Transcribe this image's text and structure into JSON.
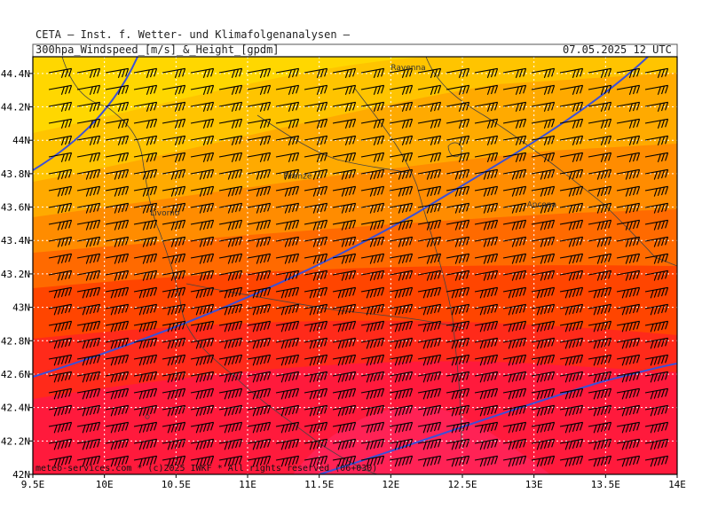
{
  "header": {
    "institution": "CETA – Inst. f. Wetter- und Klimafolgenanalysen –",
    "product": "300hpa_Windspeed_[m/s]_&_Height_[gpdm]",
    "valid_time": "07.05.2025 12 UTC"
  },
  "map": {
    "lon_ticks": [
      "9.5E",
      "10E",
      "10.5E",
      "11E",
      "11.5E",
      "12E",
      "12.5E",
      "13E",
      "13.5E",
      "14E"
    ],
    "lat_ticks": [
      "42N",
      "42.2N",
      "42.4N",
      "42.6N",
      "42.8N",
      "43N",
      "43.2N",
      "43.4N",
      "43.6N",
      "43.8N",
      "44N",
      "44.2N",
      "44.4N"
    ],
    "lon_range": [
      9.5,
      14.0
    ],
    "lat_range": [
      42.0,
      44.5
    ],
    "places": [
      {
        "name": "Ravenna",
        "lon": 12.0,
        "lat": 44.42
      },
      {
        "name": "Firenze",
        "lon": 11.25,
        "lat": 43.77
      },
      {
        "name": "Livorno",
        "lon": 10.32,
        "lat": 43.55
      },
      {
        "name": "Ancona",
        "lon": 12.95,
        "lat": 43.6
      }
    ],
    "footer": "meteo-services.com * (c)2025 IWKF * All rights reserved (06+030)",
    "colors": {
      "band_1": "#ffd700",
      "band_2": "#ffc400",
      "band_3": "#ffaa00",
      "band_4": "#ff8c00",
      "band_5": "#ff6a00",
      "band_6": "#ff4500",
      "band_7": "#ff2a1a",
      "band_8": "#ff1a3c",
      "band_9": "#ff2255",
      "contour": "#3b50d8",
      "grid": "#ffffff"
    }
  }
}
